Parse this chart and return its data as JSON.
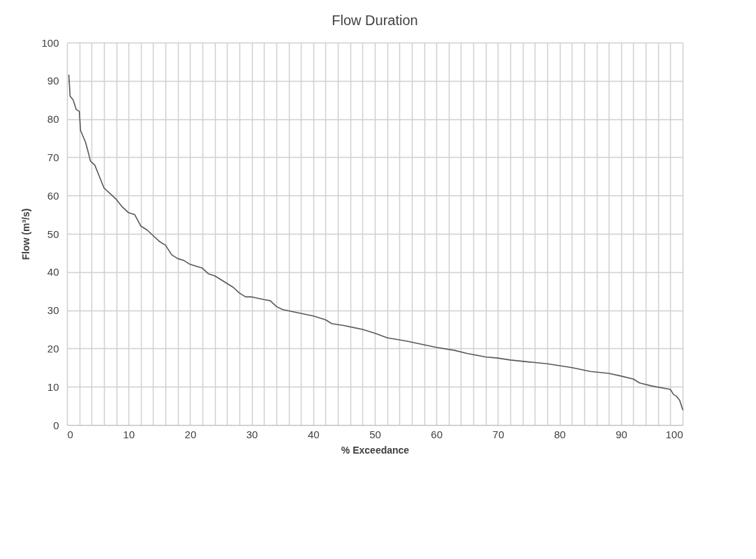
{
  "chart_data": {
    "type": "line",
    "title": "Flow Duration",
    "xlabel": "% Exceedance",
    "ylabel": "Flow (m³/s)",
    "xlim": [
      0,
      100
    ],
    "ylim": [
      0,
      100
    ],
    "xticks": [
      0,
      {
        "value": 2,
        "label": null
      },
      {
        "value": 4,
        "label": null
      },
      {
        "value": 6,
        "label": null
      },
      {
        "value": 8,
        "label": null
      },
      10,
      {
        "value": 12,
        "label": null
      },
      {
        "value": 14,
        "label": null
      },
      {
        "value": 16,
        "label": null
      },
      {
        "value": 18,
        "label": null
      },
      20,
      {
        "value": 22,
        "label": null
      },
      {
        "value": 24,
        "label": null
      },
      {
        "value": 26,
        "label": null
      },
      {
        "value": 28,
        "label": null
      },
      30,
      {
        "value": 32,
        "label": null
      },
      {
        "value": 34,
        "label": null
      },
      {
        "value": 36,
        "label": null
      },
      {
        "value": 38,
        "label": null
      },
      40,
      {
        "value": 42,
        "label": null
      },
      {
        "value": 44,
        "label": null
      },
      {
        "value": 46,
        "label": null
      },
      {
        "value": 48,
        "label": null
      },
      50,
      {
        "value": 52,
        "label": null
      },
      {
        "value": 54,
        "label": null
      },
      {
        "value": 56,
        "label": null
      },
      {
        "value": 58,
        "label": null
      },
      60,
      {
        "value": 62,
        "label": null
      },
      {
        "value": 64,
        "label": null
      },
      {
        "value": 66,
        "label": null
      },
      {
        "value": 68,
        "label": null
      },
      70,
      {
        "value": 72,
        "label": null
      },
      {
        "value": 74,
        "label": null
      },
      {
        "value": 76,
        "label": null
      },
      {
        "value": 78,
        "label": null
      },
      80,
      {
        "value": 82,
        "label": null
      },
      {
        "value": 84,
        "label": null
      },
      {
        "value": 86,
        "label": null
      },
      {
        "value": 88,
        "label": null
      },
      90,
      {
        "value": 92,
        "label": null
      },
      {
        "value": 94,
        "label": null
      },
      {
        "value": 96,
        "label": null
      },
      {
        "value": 98,
        "label": null
      },
      100
    ],
    "yticks": [
      0,
      10,
      20,
      30,
      40,
      50,
      60,
      70,
      80,
      90,
      100
    ],
    "grid": true,
    "marker": "none",
    "line_style": "solid",
    "series": [
      {
        "color": "#595959",
        "x": [
          0.3,
          0.5,
          1,
          1.5,
          2,
          2.2,
          3,
          3.5,
          3.8,
          4.5,
          5,
          6,
          7,
          8,
          9,
          10,
          11,
          12,
          13,
          14,
          15,
          16,
          17,
          18,
          19,
          20,
          22,
          23,
          24,
          25,
          26,
          27,
          28,
          29,
          30,
          32,
          33,
          34,
          35,
          37,
          40,
          42,
          43,
          45,
          48,
          50,
          52,
          55,
          60,
          63,
          65,
          68,
          70,
          72,
          75,
          78,
          80,
          82,
          85,
          88,
          90,
          92,
          93,
          95,
          98,
          98.5,
          99,
          99.5,
          100
        ],
        "values": [
          91.5,
          86,
          85,
          82.5,
          82,
          77,
          74,
          71,
          69,
          68,
          66,
          62,
          60.5,
          59,
          57,
          55.5,
          55,
          52,
          51,
          49.5,
          48,
          47,
          44.5,
          43.5,
          43,
          42,
          41,
          39.5,
          39,
          38,
          37,
          36,
          34.5,
          33.5,
          33.5,
          32.8,
          32.5,
          31,
          30.2,
          29.5,
          28.5,
          27.5,
          26.5,
          26,
          25,
          24,
          22.8,
          22,
          20.3,
          19.5,
          18.7,
          17.8,
          17.5,
          17,
          16.5,
          16,
          15.5,
          15,
          14,
          13.5,
          12.8,
          12,
          11,
          10.2,
          9.3,
          8,
          7.5,
          6.5,
          4
        ]
      }
    ]
  }
}
